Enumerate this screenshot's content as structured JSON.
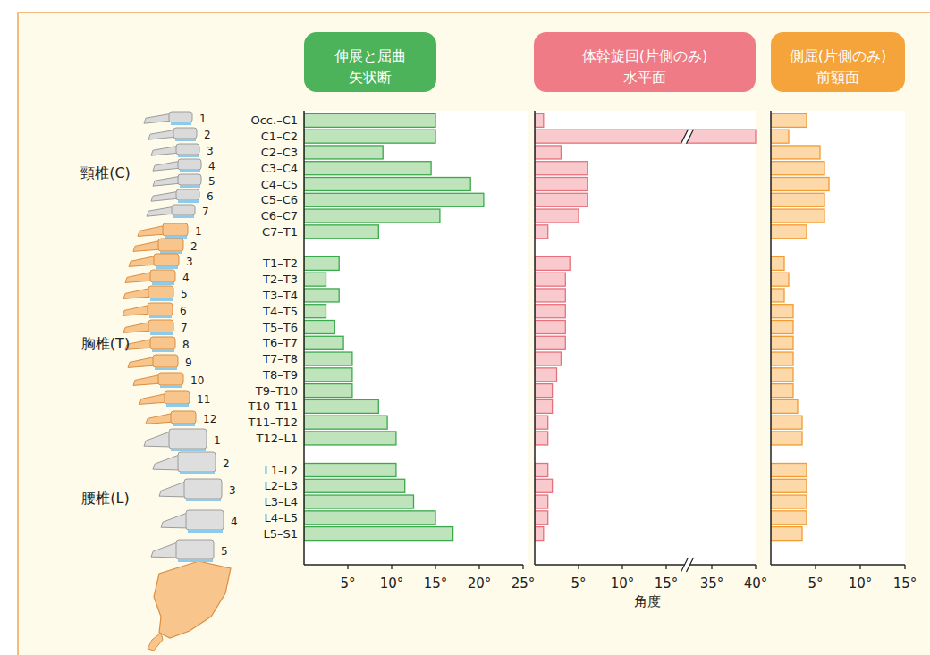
{
  "chart_data": [
    {
      "type": "bar",
      "orientation": "horizontal",
      "title": "伸展と屈曲",
      "subtitle": "矢状断",
      "categories": [
        "Occ.–C1",
        "C1–C2",
        "C2–C3",
        "C3–C4",
        "C4–C5",
        "C5–C6",
        "C6–C7",
        "C7–T1",
        null,
        "T1–T2",
        "T2–T3",
        "T3–T4",
        "T4–T5",
        "T5–T6",
        "T6–T7",
        "T7–T8",
        "T8–T9",
        "T9–T10",
        "T10–T11",
        "T11–T12",
        "T12–L1",
        null,
        "L1–L2",
        "L2–L3",
        "L3–L4",
        "L4–L5",
        "L5–S1"
      ],
      "values": [
        15,
        15,
        9,
        14.5,
        19,
        20.5,
        15.5,
        8.5,
        null,
        4,
        2.5,
        4,
        2.5,
        3.5,
        4.5,
        5.5,
        5.5,
        5.5,
        8.5,
        9.5,
        10.5,
        null,
        10.5,
        11.5,
        12.5,
        15,
        17
      ],
      "color": "#3aa94b",
      "grid": false,
      "xlim": [
        0,
        25
      ],
      "xticks": [
        {
          "value": 5,
          "label": "5°"
        },
        {
          "value": 10,
          "label": "10°"
        },
        {
          "value": 15,
          "label": "15°"
        },
        {
          "value": 20,
          "label": "20°"
        },
        {
          "value": 25,
          "label": "25°"
        }
      ]
    },
    {
      "type": "bar",
      "orientation": "horizontal",
      "title": "体幹旋回(片側のみ)",
      "subtitle": "水平面",
      "x_label": "角度",
      "categories": [
        "Occ.–C1",
        "C1–C2",
        "C2–C3",
        "C3–C4",
        "C4–C5",
        "C5–C6",
        "C6–C7",
        "C7–T1",
        null,
        "T1–T2",
        "T2–T3",
        "T3–T4",
        "T4–T5",
        "T5–T6",
        "T6–T7",
        "T7–T8",
        "T8–T9",
        "T9–T10",
        "T10–T11",
        "T11–T12",
        "T12–L1",
        null,
        "L1–L2",
        "L2–L3",
        "L3–L4",
        "L4–L5",
        "L5–S1"
      ],
      "values": [
        1,
        40,
        3,
        6,
        6,
        6,
        5,
        1.5,
        null,
        4,
        3.5,
        3.5,
        3.5,
        3.5,
        3.5,
        3,
        2.5,
        2,
        2,
        1.5,
        1.5,
        null,
        1.5,
        2,
        1.5,
        1.5,
        1
      ],
      "color": "#e8707c",
      "grid": false,
      "tick_labels": "x",
      "xlim": [
        0,
        40
      ],
      "axis_break": [
        15,
        35
      ],
      "xticks": [
        {
          "value": 5,
          "label": "5°"
        },
        {
          "value": 10,
          "label": "10°"
        },
        {
          "value": 15,
          "label": "15°"
        },
        {
          "value": 35,
          "label": "35°"
        },
        {
          "value": 40,
          "label": "40°"
        }
      ]
    },
    {
      "type": "bar",
      "orientation": "horizontal",
      "title": "側屈(片側のみ)",
      "subtitle": "前額面",
      "categories": [
        "Occ.–C1",
        "C1–C2",
        "C2–C3",
        "C3–C4",
        "C4–C5",
        "C5–C6",
        "C6–C7",
        "C7–T1",
        null,
        "T1–T2",
        "T2–T3",
        "T3–T4",
        "T4–T5",
        "T5–T6",
        "T6–T7",
        "T7–T8",
        "T8–T9",
        "T9–T10",
        "T10–T11",
        "T11–T12",
        "T12–L1",
        null,
        "L1–L2",
        "L2–L3",
        "L3–L4",
        "L4–L5",
        "L5–S1"
      ],
      "values": [
        4,
        2,
        5.5,
        6,
        6.5,
        6,
        6,
        4,
        null,
        1.5,
        2,
        1.5,
        2.5,
        2.5,
        2.5,
        2.5,
        2.5,
        2.5,
        3,
        3.5,
        3.5,
        null,
        4,
        4,
        4,
        4,
        3.5
      ],
      "color": "#f29b30",
      "grid": false,
      "tick_labels": "x",
      "xlim": [
        0,
        15
      ],
      "xticks": [
        {
          "value": 5,
          "label": "5°"
        },
        {
          "value": 10,
          "label": "10°"
        },
        {
          "value": 15,
          "label": "15°"
        }
      ]
    }
  ],
  "spine": {
    "regions": [
      {
        "label": "頸椎(C)",
        "numbers": [
          "1",
          "2",
          "3",
          "4",
          "5",
          "6",
          "7"
        ]
      },
      {
        "label": "胸椎(T)",
        "numbers": [
          "1",
          "2",
          "3",
          "4",
          "5",
          "6",
          "7",
          "8",
          "9",
          "10",
          "11",
          "12"
        ]
      },
      {
        "label": "腰椎(L)",
        "numbers": [
          "1",
          "2",
          "3",
          "4",
          "5"
        ]
      }
    ]
  }
}
